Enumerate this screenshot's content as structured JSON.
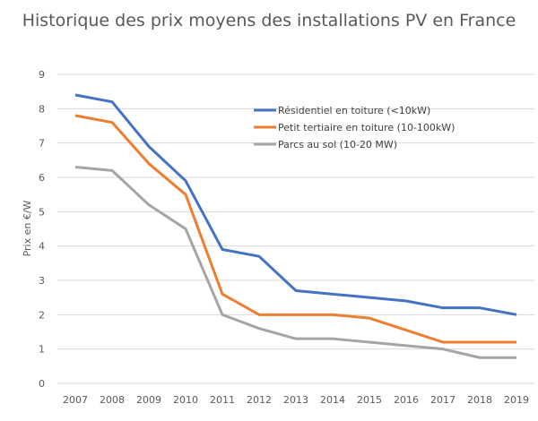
{
  "chart_data": {
    "type": "line",
    "title": "Historique des prix moyens des installations PV en France",
    "xlabel": "",
    "ylabel": "Prix en €/W",
    "ylim": [
      0,
      9
    ],
    "yticks": [
      "0",
      "1",
      "2",
      "3",
      "4",
      "5",
      "6",
      "7",
      "8",
      "9"
    ],
    "grid": true,
    "legend_position": "top-right",
    "categories": [
      "2007",
      "2008",
      "2009",
      "2010",
      "2011",
      "2012",
      "2013",
      "2014",
      "2015",
      "2016",
      "2017",
      "2018",
      "2019"
    ],
    "series": [
      {
        "name": "Résidentiel en toiture (<10kW)",
        "color": "#4472C4",
        "values": [
          8.4,
          8.2,
          6.9,
          5.9,
          3.9,
          3.7,
          2.7,
          2.6,
          2.5,
          2.4,
          2.2,
          2.2,
          2.0
        ]
      },
      {
        "name": "Petit tertiaire en toiture (10-100kW)",
        "color": "#ED7D31",
        "values": [
          7.8,
          7.6,
          6.4,
          5.5,
          2.6,
          2.0,
          2.0,
          2.0,
          1.9,
          1.55,
          1.2,
          1.2,
          1.2
        ]
      },
      {
        "name": "Parcs au sol (10-20 MW)",
        "color": "#A5A5A5",
        "values": [
          6.3,
          6.2,
          5.2,
          4.5,
          2.0,
          1.6,
          1.3,
          1.3,
          1.2,
          1.1,
          1.0,
          0.75,
          0.75
        ]
      }
    ]
  }
}
